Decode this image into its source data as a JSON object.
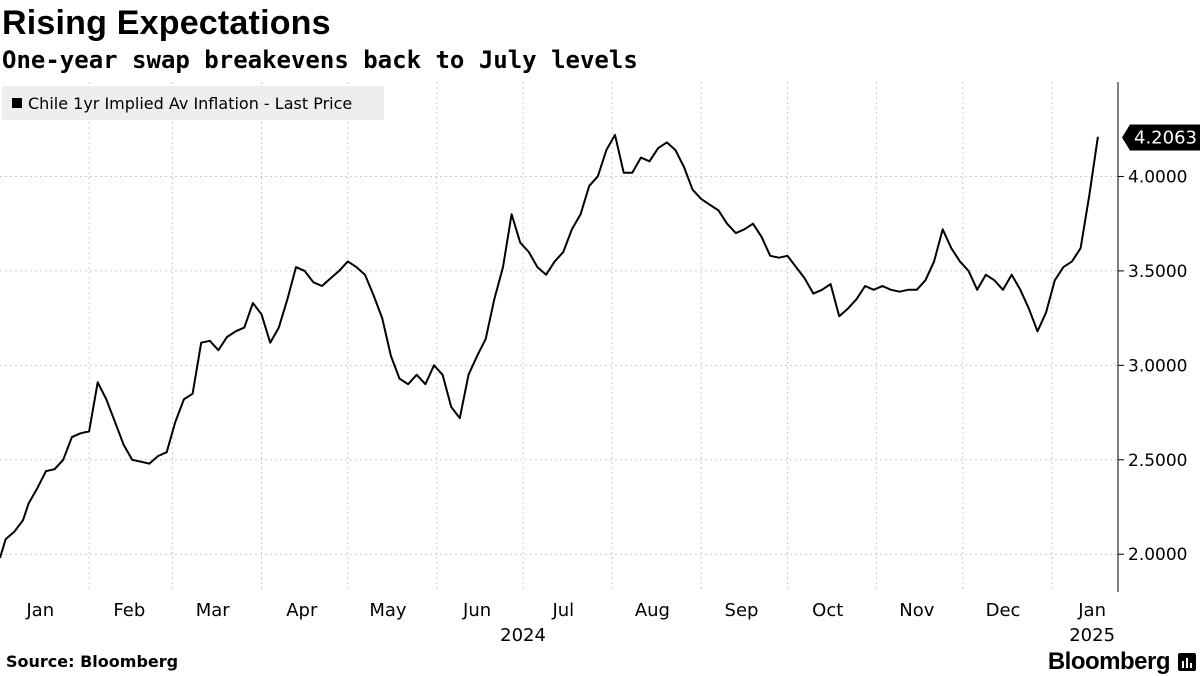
{
  "header": {
    "title": "Rising Expectations",
    "subtitle": "One-year swap breakevens back to July levels"
  },
  "footer": {
    "source": "Source: Bloomberg",
    "brand": "Bloomberg"
  },
  "chart_data": {
    "type": "line",
    "title": "Rising Expectations",
    "subtitle": "One-year swap breakevens back to July levels",
    "xlabel": "",
    "ylabel": "",
    "ylim": [
      1.8,
      4.5
    ],
    "y_ticks": [
      "2.0000",
      "2.5000",
      "3.0000",
      "3.5000",
      "4.0000"
    ],
    "y_tick_values": [
      2.0,
      2.5,
      3.0,
      3.5,
      4.0
    ],
    "x_ticks": [
      {
        "label": "Jan",
        "date": "2024-01-15"
      },
      {
        "label": "Feb",
        "date": "2024-02-15"
      },
      {
        "label": "Mar",
        "date": "2024-03-15"
      },
      {
        "label": "Apr",
        "date": "2024-04-15"
      },
      {
        "label": "May",
        "date": "2024-05-15"
      },
      {
        "label": "Jun",
        "date": "2024-06-15"
      },
      {
        "label": "Jul",
        "date": "2024-07-15"
      },
      {
        "label": "Aug",
        "date": "2024-08-15"
      },
      {
        "label": "Sep",
        "date": "2024-09-15"
      },
      {
        "label": "Oct",
        "date": "2024-10-15"
      },
      {
        "label": "Nov",
        "date": "2024-11-15"
      },
      {
        "label": "Dec",
        "date": "2024-12-15"
      },
      {
        "label": "Jan",
        "date": "2025-01-15"
      }
    ],
    "year_labels": [
      {
        "label": "2024",
        "date": "2024-07-01"
      },
      {
        "label": "2025",
        "date": "2025-01-15"
      }
    ],
    "grid": true,
    "legend_position": "top-left",
    "last_value_label": "4.2063",
    "series": [
      {
        "name": "Chile 1yr Implied Av Inflation - Last Price",
        "color": "#000000",
        "x": [
          "2024-01-01",
          "2024-01-03",
          "2024-01-06",
          "2024-01-09",
          "2024-01-11",
          "2024-01-14",
          "2024-01-17",
          "2024-01-20",
          "2024-01-23",
          "2024-01-26",
          "2024-01-29",
          "2024-02-01",
          "2024-02-04",
          "2024-02-07",
          "2024-02-10",
          "2024-02-13",
          "2024-02-16",
          "2024-02-19",
          "2024-02-22",
          "2024-02-25",
          "2024-02-28",
          "2024-03-02",
          "2024-03-05",
          "2024-03-08",
          "2024-03-11",
          "2024-03-14",
          "2024-03-17",
          "2024-03-20",
          "2024-03-23",
          "2024-03-26",
          "2024-03-29",
          "2024-04-01",
          "2024-04-04",
          "2024-04-07",
          "2024-04-10",
          "2024-04-13",
          "2024-04-16",
          "2024-04-19",
          "2024-04-22",
          "2024-04-25",
          "2024-04-28",
          "2024-05-01",
          "2024-05-04",
          "2024-05-07",
          "2024-05-10",
          "2024-05-13",
          "2024-05-16",
          "2024-05-19",
          "2024-05-22",
          "2024-05-25",
          "2024-05-28",
          "2024-05-31",
          "2024-06-03",
          "2024-06-06",
          "2024-06-09",
          "2024-06-12",
          "2024-06-15",
          "2024-06-18",
          "2024-06-21",
          "2024-06-24",
          "2024-06-27",
          "2024-06-30",
          "2024-07-03",
          "2024-07-06",
          "2024-07-09",
          "2024-07-12",
          "2024-07-15",
          "2024-07-18",
          "2024-07-21",
          "2024-07-24",
          "2024-07-27",
          "2024-07-30",
          "2024-08-02",
          "2024-08-05",
          "2024-08-08",
          "2024-08-11",
          "2024-08-14",
          "2024-08-17",
          "2024-08-20",
          "2024-08-23",
          "2024-08-26",
          "2024-08-29",
          "2024-09-01",
          "2024-09-04",
          "2024-09-07",
          "2024-09-10",
          "2024-09-13",
          "2024-09-16",
          "2024-09-19",
          "2024-09-22",
          "2024-09-25",
          "2024-09-28",
          "2024-10-01",
          "2024-10-04",
          "2024-10-07",
          "2024-10-10",
          "2024-10-13",
          "2024-10-16",
          "2024-10-19",
          "2024-10-22",
          "2024-10-25",
          "2024-10-28",
          "2024-10-31",
          "2024-11-03",
          "2024-11-06",
          "2024-11-09",
          "2024-11-12",
          "2024-11-15",
          "2024-11-18",
          "2024-11-21",
          "2024-11-24",
          "2024-11-27",
          "2024-11-30",
          "2024-12-03",
          "2024-12-06",
          "2024-12-09",
          "2024-12-12",
          "2024-12-15",
          "2024-12-18",
          "2024-12-21",
          "2024-12-24",
          "2024-12-27",
          "2024-12-30",
          "2025-01-02",
          "2025-01-05",
          "2025-01-08",
          "2025-01-11",
          "2025-01-14",
          "2025-01-17"
        ],
        "y": [
          1.98,
          2.08,
          2.12,
          2.18,
          2.27,
          2.35,
          2.44,
          2.45,
          2.5,
          2.62,
          2.64,
          2.65,
          2.91,
          2.82,
          2.7,
          2.58,
          2.5,
          2.49,
          2.48,
          2.52,
          2.54,
          2.7,
          2.82,
          2.85,
          3.12,
          3.13,
          3.08,
          3.15,
          3.18,
          3.2,
          3.33,
          3.27,
          3.12,
          3.2,
          3.35,
          3.52,
          3.5,
          3.44,
          3.42,
          3.46,
          3.5,
          3.55,
          3.52,
          3.48,
          3.37,
          3.25,
          3.05,
          2.93,
          2.9,
          2.95,
          2.9,
          3.0,
          2.95,
          2.78,
          2.72,
          2.95,
          3.05,
          3.14,
          3.35,
          3.52,
          3.8,
          3.65,
          3.6,
          3.52,
          3.48,
          3.55,
          3.6,
          3.72,
          3.8,
          3.95,
          4.0,
          4.14,
          4.22,
          4.02,
          4.02,
          4.1,
          4.08,
          4.15,
          4.18,
          4.14,
          4.05,
          3.93,
          3.88,
          3.85,
          3.82,
          3.75,
          3.7,
          3.72,
          3.75,
          3.68,
          3.58,
          3.57,
          3.58,
          3.52,
          3.46,
          3.38,
          3.4,
          3.43,
          3.26,
          3.3,
          3.35,
          3.42,
          3.4,
          3.42,
          3.4,
          3.39,
          3.4,
          3.4,
          3.45,
          3.55,
          3.72,
          3.62,
          3.55,
          3.5,
          3.4,
          3.48,
          3.45,
          3.4,
          3.48,
          3.4,
          3.3,
          3.18,
          3.28,
          3.45,
          3.52,
          3.55,
          3.62,
          3.9,
          4.21
        ]
      }
    ]
  }
}
